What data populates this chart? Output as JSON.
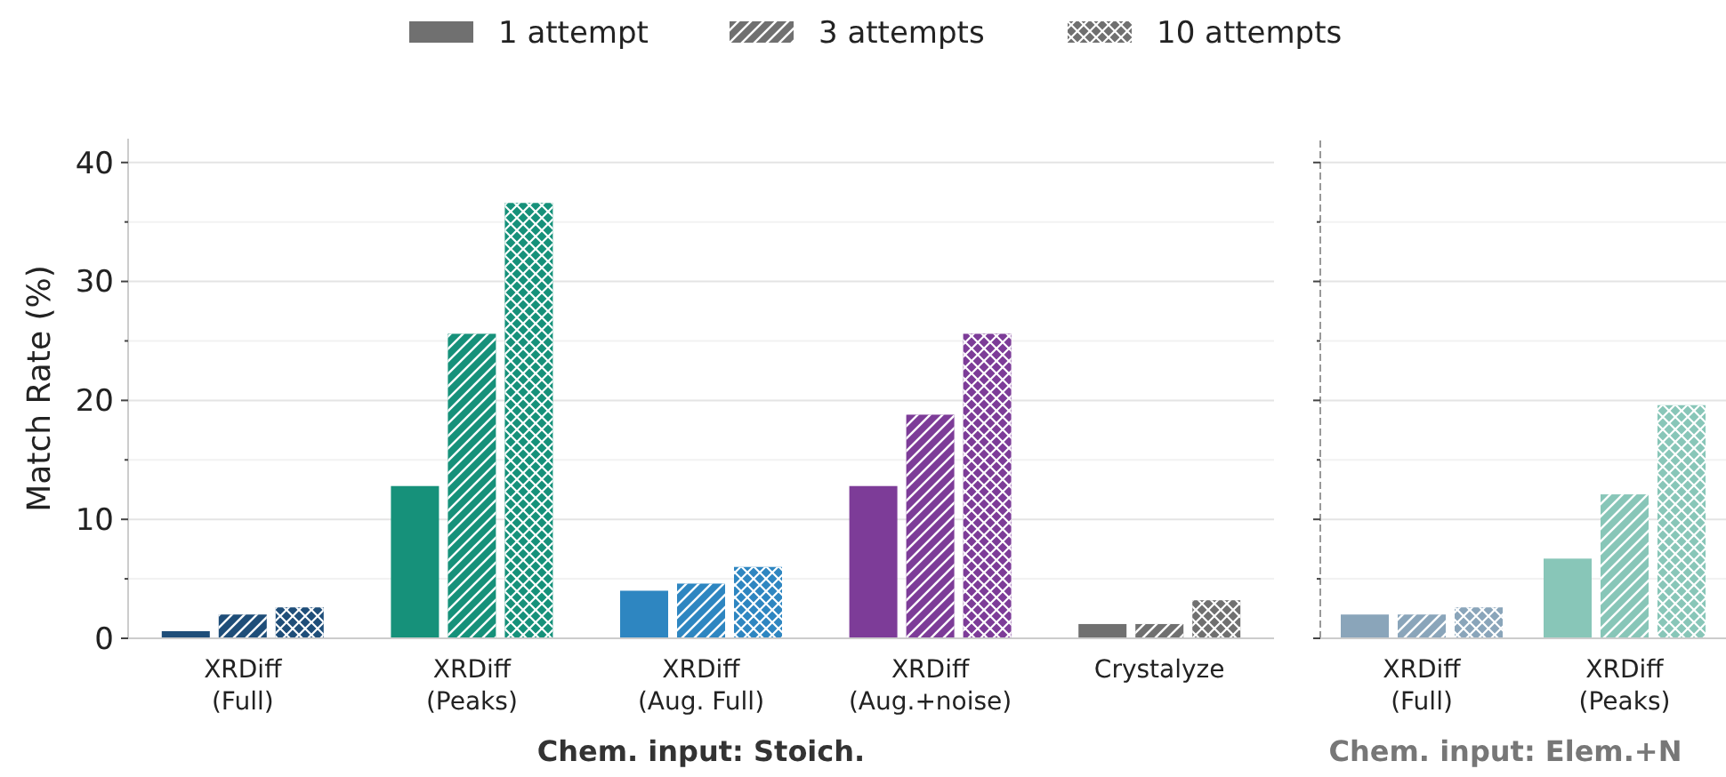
{
  "chart_data": [
    {
      "type": "bar",
      "xlabel": "Chem. input: Stoich.",
      "ylabel": "Match Rate (%)",
      "categories": [
        "XRDiff\n(Full)",
        "XRDiff\n(Peaks)",
        "XRDiff\n(Aug. Full)",
        "XRDiff\n(Aug.+noise)",
        "Crystalyze"
      ],
      "ylim": [
        0,
        42
      ],
      "yticks": [
        0,
        {
          "value": 5,
          "label": null
        },
        10,
        {
          "value": 15,
          "label": null
        },
        20,
        {
          "value": 25,
          "label": null
        },
        30,
        {
          "value": 35,
          "label": null
        },
        40
      ],
      "grid": "y",
      "legend": "top",
      "series": [
        {
          "name": "1 attempt",
          "color": "#707070",
          "colors": [
            "#1f4e79",
            "#16917a",
            "#2e86c1",
            "#7d3c98",
            "#707070"
          ],
          "values": [
            0.6,
            12.8,
            4.0,
            12.8,
            1.2
          ]
        },
        {
          "name": "3 attempts",
          "color": "#707070",
          "colors": [
            "#1f4e79",
            "#16917a",
            "#2e86c1",
            "#7d3c98",
            "#707070"
          ],
          "values": [
            2.0,
            25.6,
            4.6,
            18.8,
            1.2
          ]
        },
        {
          "name": "10 attempts",
          "color": "#707070",
          "colors": [
            "#1f4e79",
            "#16917a",
            "#2e86c1",
            "#7d3c98",
            "#707070"
          ],
          "values": [
            2.6,
            36.6,
            6.0,
            25.6,
            3.2
          ]
        }
      ]
    },
    {
      "type": "bar",
      "xlabel": "Chem. input: Elem.+N",
      "categories": [
        "XRDiff\n(Full)",
        "XRDiff\n(Peaks)"
      ],
      "ylim": [
        0,
        42
      ],
      "yticks": [
        0,
        {
          "value": 5,
          "label": null
        },
        10,
        {
          "value": 15,
          "label": null
        },
        20,
        {
          "value": 25,
          "label": null
        },
        30,
        {
          "value": 35,
          "label": null
        },
        40
      ],
      "grid": "y",
      "tick_labels": "x",
      "series": [
        {
          "colors": [
            "#8aa5ba",
            "#88c6b8"
          ],
          "values": [
            2.0,
            6.7
          ]
        },
        {
          "colors": [
            "#8aa5ba",
            "#88c6b8"
          ],
          "values": [
            2.0,
            12.1
          ]
        },
        {
          "colors": [
            "#8aa5ba",
            "#88c6b8"
          ],
          "values": [
            2.6,
            19.6
          ]
        }
      ]
    }
  ]
}
